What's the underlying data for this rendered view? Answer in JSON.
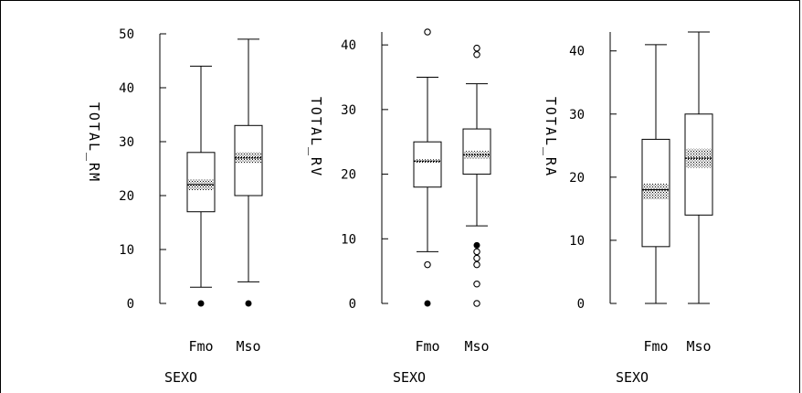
{
  "chart_data": [
    {
      "type": "box",
      "ylabel": "TOTAL_RM",
      "xlabel": "SEXO",
      "categories": [
        "Fmo",
        "Mso"
      ],
      "ylim": [
        0,
        50
      ],
      "yticks": [
        0,
        10,
        20,
        30,
        40,
        50
      ],
      "boxes": [
        {
          "category": "Fmo",
          "whisker_low": 3,
          "q1": 17,
          "median": 22,
          "q3": 28,
          "whisker_high": 44,
          "notch": [
            21,
            23
          ],
          "outliers": [
            {
              "value": 0,
              "style": "far"
            }
          ]
        },
        {
          "category": "Mso",
          "whisker_low": 4,
          "q1": 20,
          "median": 27,
          "q3": 33,
          "whisker_high": 49,
          "notch": [
            26,
            28
          ],
          "outliers": [
            {
              "value": 0,
              "style": "far"
            }
          ]
        }
      ]
    },
    {
      "type": "box",
      "ylabel": "TOTAL_RV",
      "xlabel": "SEXO",
      "categories": [
        "Fmo",
        "Mso"
      ],
      "ylim": [
        0,
        42
      ],
      "yticks": [
        0,
        10,
        20,
        30,
        40
      ],
      "boxes": [
        {
          "category": "Fmo",
          "whisker_low": 8,
          "q1": 18,
          "median": 22,
          "q3": 25,
          "whisker_high": 35,
          "notch": [
            21.7,
            22.3
          ],
          "outliers": [
            {
              "value": 42,
              "style": "near"
            },
            {
              "value": 6,
              "style": "near"
            },
            {
              "value": 0,
              "style": "far"
            }
          ]
        },
        {
          "category": "Mso",
          "whisker_low": 12,
          "q1": 20,
          "median": 23,
          "q3": 27,
          "whisker_high": 34,
          "notch": [
            22.4,
            23.6
          ],
          "outliers": [
            {
              "value": 39.5,
              "style": "near"
            },
            {
              "value": 38.5,
              "style": "near"
            },
            {
              "value": 9,
              "style": "far"
            },
            {
              "value": 8,
              "style": "near"
            },
            {
              "value": 7,
              "style": "near"
            },
            {
              "value": 6,
              "style": "near"
            },
            {
              "value": 3,
              "style": "near"
            },
            {
              "value": 0,
              "style": "near"
            }
          ]
        }
      ]
    },
    {
      "type": "box",
      "ylabel": "TOTAL_RA",
      "xlabel": "SEXO",
      "categories": [
        "Fmo",
        "Mso"
      ],
      "ylim": [
        0,
        43
      ],
      "yticks": [
        0,
        10,
        20,
        30,
        40
      ],
      "boxes": [
        {
          "category": "Fmo",
          "whisker_low": 0,
          "q1": 9,
          "median": 18,
          "q3": 26,
          "whisker_high": 41,
          "notch": [
            16.5,
            19
          ],
          "outliers": []
        },
        {
          "category": "Mso",
          "whisker_low": 0,
          "q1": 14,
          "median": 23,
          "q3": 30,
          "whisker_high": 43,
          "notch": [
            21.5,
            24.5
          ],
          "outliers": []
        }
      ]
    }
  ]
}
